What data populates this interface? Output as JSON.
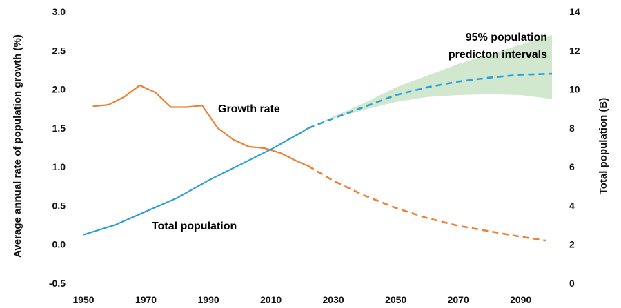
{
  "chart_data": {
    "type": "line",
    "title": "",
    "xlabel": "",
    "ylabel_left": "Average annual rate of population growth (%)",
    "ylabel_right": "Total population (B)",
    "x_ticks": [
      "1950",
      "1970",
      "1990",
      "2010",
      "2030",
      "2050",
      "2070",
      "2090"
    ],
    "xlim": [
      1950,
      2100
    ],
    "ylim_left": [
      -0.5,
      3.0
    ],
    "ylim_right": [
      0,
      14
    ],
    "y_left_ticks": [
      "3.0",
      "2.5",
      "2.0",
      "1.5",
      "1.0",
      "0.5",
      "0.0",
      "-0.5"
    ],
    "y_right_ticks": [
      "14",
      "12",
      "10",
      "8",
      "6",
      "4",
      "2",
      "0"
    ],
    "grid": false,
    "colors": {
      "growth": "#ee7f33",
      "population": "#2b9fd8",
      "interval_fill": "#c9e3c5",
      "interval_text": "#5aa84c"
    },
    "series": [
      {
        "name": "Growth rate",
        "axis": "left",
        "observed": {
          "x": [
            1953,
            1958,
            1963,
            1968,
            1973,
            1978,
            1983,
            1988,
            1993,
            1998,
            2003,
            2008,
            2013,
            2018,
            2022
          ],
          "y": [
            1.78,
            1.8,
            1.9,
            2.05,
            1.96,
            1.77,
            1.77,
            1.79,
            1.5,
            1.35,
            1.26,
            1.24,
            1.18,
            1.08,
            1.01
          ]
        },
        "projected": {
          "x": [
            2022,
            2030,
            2040,
            2050,
            2060,
            2070,
            2080,
            2090,
            2098
          ],
          "y": [
            1.01,
            0.82,
            0.63,
            0.47,
            0.34,
            0.24,
            0.17,
            0.1,
            0.05
          ]
        }
      },
      {
        "name": "Total population",
        "axis": "right",
        "observed": {
          "x": [
            1950,
            1960,
            1970,
            1980,
            1990,
            2000,
            2010,
            2020,
            2022
          ],
          "y": [
            2.5,
            3.0,
            3.7,
            4.4,
            5.3,
            6.1,
            6.9,
            7.8,
            8.0
          ]
        },
        "projected": {
          "x": [
            2022,
            2030,
            2040,
            2050,
            2060,
            2070,
            2080,
            2090,
            2100
          ],
          "y": [
            8.0,
            8.5,
            9.1,
            9.7,
            10.1,
            10.4,
            10.6,
            10.75,
            10.8
          ]
        }
      }
    ],
    "prediction_interval": {
      "name": "95% population predicton intervals",
      "axis": "right",
      "x": [
        2022,
        2030,
        2040,
        2050,
        2060,
        2070,
        2080,
        2090,
        2100
      ],
      "lower": [
        8.0,
        8.5,
        8.95,
        9.35,
        9.6,
        9.7,
        9.75,
        9.7,
        9.5
      ],
      "upper": [
        8.0,
        8.6,
        9.3,
        10.1,
        10.7,
        11.3,
        11.8,
        12.3,
        12.8
      ]
    },
    "annotations": {
      "growth_label": "Growth rate",
      "population_label": "Total population",
      "interval_label_line1": "95% population",
      "interval_label_line2": "predicton intervals"
    }
  }
}
